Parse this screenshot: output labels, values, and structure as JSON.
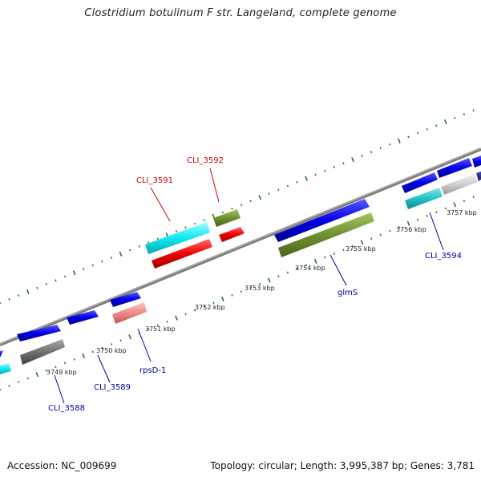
{
  "title": "Clostridium botulinum F str. Langeland, complete genome",
  "footer": {
    "accession": "Accession: NC_009699",
    "summary": "Topology: circular; Length: 3,995,387 bp; Genes: 3,781"
  },
  "colors": {
    "backbone": "#8c8c8c",
    "tick": "#1f7a1f",
    "label_red": "#cc0000",
    "label_blue": "#000099"
  },
  "ruler_labels": [
    "3749 kbp",
    "3750 kbp",
    "3751 kbp",
    "3752 kbp",
    "3753 kbp",
    "3754 kbp",
    "3755 kbp",
    "3756 kbp",
    "3757 kbp"
  ],
  "gene_labels": [
    "CLI_3588",
    "CLI_3589",
    "rpsD-1",
    "CLI_3591",
    "CLI_3592",
    "glmS",
    "CLI_3594"
  ]
}
